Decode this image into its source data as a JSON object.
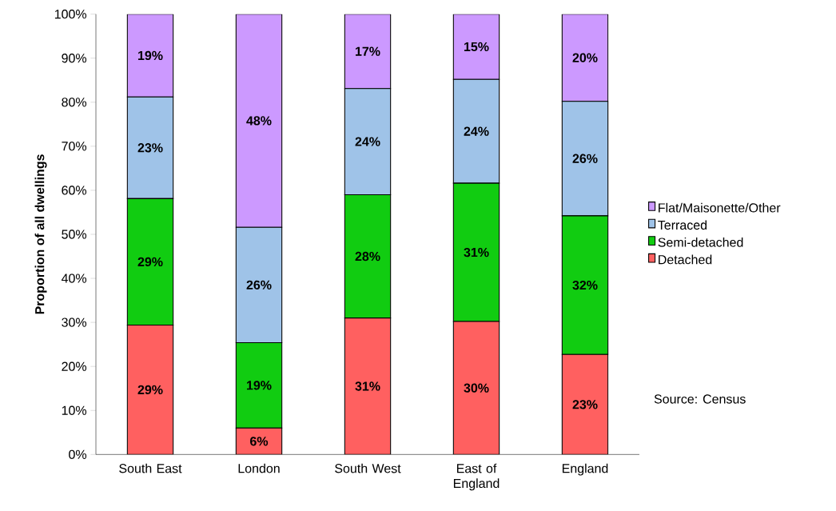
{
  "chart_data": {
    "type": "bar",
    "stacked": true,
    "ylabel": "Proportion of all dwellings",
    "categories": [
      "South East",
      "London",
      "South West",
      "East of England",
      "England"
    ],
    "series": [
      {
        "name": "Detached",
        "color": "#ff6060",
        "values": [
          29.4,
          6.0,
          31.0,
          30.2,
          22.7
        ],
        "value_labels": [
          "29%",
          "6%",
          "31%",
          "30%",
          "23%"
        ]
      },
      {
        "name": "Semi-detached",
        "color": "#11cc11",
        "values": [
          28.7,
          19.4,
          28.0,
          31.4,
          31.5
        ],
        "value_labels": [
          "29%",
          "19%",
          "28%",
          "31%",
          "32%"
        ]
      },
      {
        "name": "Terraced",
        "color": "#9fc3e8",
        "values": [
          23.1,
          26.2,
          24.1,
          23.6,
          26.0
        ],
        "value_labels": [
          "23%",
          "26%",
          "24%",
          "24%",
          "26%"
        ]
      },
      {
        "name": "Flat/Maisonette/Other",
        "color": "#cc99ff",
        "values": [
          18.8,
          48.4,
          16.9,
          14.8,
          19.8
        ],
        "value_labels": [
          "19%",
          "48%",
          "17%",
          "15%",
          "20%"
        ]
      }
    ],
    "ylim": [
      0,
      100
    ],
    "yticks": [
      {
        "value": 0,
        "label": "0%"
      },
      {
        "value": 10,
        "label": "10%"
      },
      {
        "value": 20,
        "label": "20%"
      },
      {
        "value": 30,
        "label": "30%"
      },
      {
        "value": 40,
        "label": "40%"
      },
      {
        "value": 50,
        "label": "50%"
      },
      {
        "value": 60,
        "label": "60%"
      },
      {
        "value": 70,
        "label": "70%"
      },
      {
        "value": 80,
        "label": "80%"
      },
      {
        "value": 90,
        "label": "90%"
      },
      {
        "value": 100,
        "label": "100%"
      }
    ],
    "legend": "right",
    "grid": false,
    "annotations": [
      "Source: Census"
    ]
  }
}
